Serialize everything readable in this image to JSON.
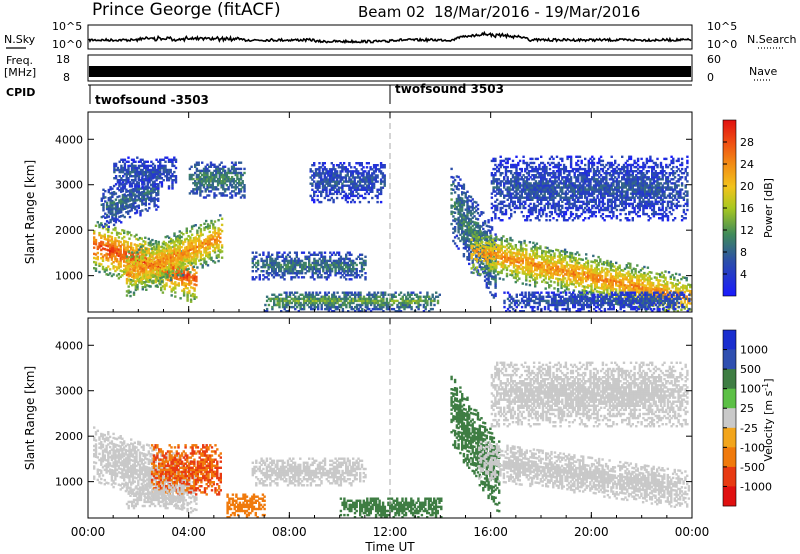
{
  "header": {
    "station": "Prince George (fitACF)",
    "beam": "Beam 02",
    "dates": "18/Mar/2016 - 19/Mar/2016"
  },
  "side_labels": {
    "nsky": "N.Sky",
    "freq_line1": "Freq.",
    "freq_line2": "[MHz]",
    "cpid": "CPID",
    "nsearch": "N.Search",
    "nave": "Nave",
    "nsky_ticks": [
      "10^5",
      "10^0"
    ],
    "nsearch_ticks": [
      "10^5",
      "10^0"
    ],
    "freq_ticks": [
      "18",
      "8"
    ],
    "nave_ticks": [
      "60",
      "0"
    ]
  },
  "cpid": {
    "left": "twofsound -3503",
    "right": "twofsound 3503",
    "switch_hour": 12
  },
  "chart_data": [
    {
      "type": "heatmap",
      "panel": "power",
      "xlabel": "Time UT",
      "ylabel": "Slant Range [km]",
      "xlim_hours": [
        0,
        24
      ],
      "ylim": [
        200,
        4600
      ],
      "y_ticks": [
        1000,
        2000,
        3000,
        4000
      ],
      "x_ticks": [
        "00:00",
        "04:00",
        "08:00",
        "12:00",
        "16:00",
        "20:00",
        "00:00"
      ],
      "colorbar": {
        "label": "Power [dB]",
        "range": [
          0,
          32
        ],
        "ticks": [
          4,
          8,
          12,
          16,
          20,
          24,
          28
        ]
      },
      "echo_regions": [
        {
          "t0": 0.2,
          "t1": 4.3,
          "r0": 1100,
          "r1": 2200,
          "slope": -180,
          "p": 26
        },
        {
          "t0": 1.5,
          "t1": 5.3,
          "r0": 500,
          "r1": 1500,
          "slope": 220,
          "p": 22
        },
        {
          "t0": 0.5,
          "t1": 2.8,
          "r0": 2000,
          "r1": 2900,
          "slope": 200,
          "p": 8
        },
        {
          "t0": 4.0,
          "t1": 6.2,
          "r0": 2700,
          "r1": 3500,
          "slope": 0,
          "p": 10
        },
        {
          "t0": 6.5,
          "t1": 11.0,
          "r0": 900,
          "r1": 1500,
          "slope": 0,
          "p": 9
        },
        {
          "t0": 8.8,
          "t1": 11.8,
          "r0": 2600,
          "r1": 3500,
          "slope": 0,
          "p": 6
        },
        {
          "t0": 1.0,
          "t1": 3.5,
          "r0": 2900,
          "r1": 3600,
          "slope": 0,
          "p": 6
        },
        {
          "t0": 7.0,
          "t1": 14.0,
          "r0": 200,
          "r1": 650,
          "slope": 0,
          "p": 12
        },
        {
          "t0": 14.4,
          "t1": 16.2,
          "r0": 1800,
          "r1": 3400,
          "slope": -800,
          "p": 10
        },
        {
          "t0": 15.2,
          "t1": 23.9,
          "r0": 1050,
          "r1": 2000,
          "slope": -120,
          "p": 22
        },
        {
          "t0": 16.0,
          "t1": 23.8,
          "r0": 2200,
          "r1": 3600,
          "slope": 0,
          "p": 6
        },
        {
          "t0": 16.5,
          "t1": 23.9,
          "r0": 200,
          "r1": 650,
          "slope": 0,
          "p": 6
        }
      ]
    },
    {
      "type": "heatmap",
      "panel": "velocity",
      "xlabel": "Time UT",
      "ylabel": "Slant Range [km]",
      "xlim_hours": [
        0,
        24
      ],
      "ylim": [
        200,
        4600
      ],
      "y_ticks": [
        1000,
        2000,
        3000,
        4000
      ],
      "x_ticks": [
        "00:00",
        "04:00",
        "08:00",
        "12:00",
        "16:00",
        "20:00",
        "00:00"
      ],
      "colorbar": {
        "label": "Velocity [m s-1]",
        "label_main": "Velocity [m s",
        "label_exp": "-1",
        "label_close": "]",
        "ticks": [
          "1000",
          "500",
          "100",
          "25",
          "-25",
          "-100",
          "-500",
          "-1000"
        ],
        "colors": [
          "#1a2ecf",
          "#2f4fb0",
          "#3e7d43",
          "#5cc046",
          "#c9c9c9",
          "#f2a51c",
          "#f07a0c",
          "#e83a12",
          "#e01010"
        ]
      },
      "echo_regions": [
        {
          "t0": 0.2,
          "t1": 4.3,
          "r0": 1000,
          "r1": 2200,
          "slope": -180,
          "v": 0
        },
        {
          "t0": 2.5,
          "t1": 5.3,
          "r0": 700,
          "r1": 1800,
          "slope": 0,
          "v": -300
        },
        {
          "t0": 1.5,
          "t1": 3.8,
          "r0": 400,
          "r1": 900,
          "slope": 0,
          "v": 0
        },
        {
          "t0": 5.5,
          "t1": 7.0,
          "r0": 200,
          "r1": 700,
          "slope": 0,
          "v": -200
        },
        {
          "t0": 6.5,
          "t1": 11.0,
          "r0": 900,
          "r1": 1500,
          "slope": 0,
          "v": 0
        },
        {
          "t0": 10.0,
          "t1": 14.0,
          "r0": 200,
          "r1": 650,
          "slope": 0,
          "v": 110
        },
        {
          "t0": 14.4,
          "t1": 16.3,
          "r0": 1800,
          "r1": 3400,
          "slope": -800,
          "v": 110
        },
        {
          "t0": 15.5,
          "t1": 23.9,
          "r0": 1050,
          "r1": 1900,
          "slope": -80,
          "v": 0
        },
        {
          "t0": 16.0,
          "t1": 23.8,
          "r0": 2200,
          "r1": 3600,
          "slope": 0,
          "v": 0
        }
      ]
    }
  ]
}
